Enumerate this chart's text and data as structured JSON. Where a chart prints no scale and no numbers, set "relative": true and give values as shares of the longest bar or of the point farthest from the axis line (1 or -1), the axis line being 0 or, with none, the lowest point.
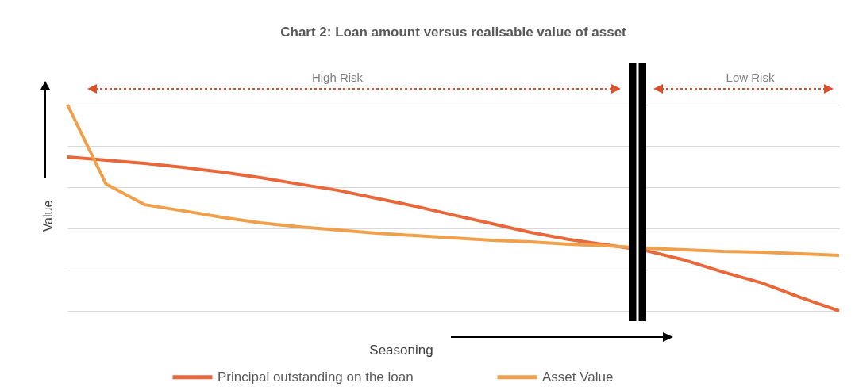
{
  "chart_data": {
    "type": "line",
    "title": "Chart 2: Loan amount versus realisable value of asset",
    "xlabel": "Seasoning",
    "ylabel": "Value",
    "relative": true,
    "categories": [
      null,
      null,
      null,
      null,
      null,
      null,
      null,
      null,
      null,
      null,
      null,
      null,
      null,
      null,
      null,
      null,
      null,
      null,
      null,
      null,
      null
    ],
    "series": [
      {
        "name": "Principal outstanding on the loan",
        "color": "#e8683a",
        "values": [
          0.746,
          0.731,
          0.715,
          0.696,
          0.673,
          0.646,
          0.615,
          0.585,
          0.546,
          0.508,
          0.465,
          0.423,
          0.381,
          0.346,
          0.319,
          0.292,
          0.246,
          0.188,
          0.135,
          0.065,
          0
        ]
      },
      {
        "name": "Asset Value",
        "color": "#f0a04b",
        "values": [
          1,
          0.615,
          0.515,
          0.485,
          0.454,
          0.427,
          0.408,
          0.392,
          0.377,
          0.365,
          0.354,
          0.342,
          0.335,
          0.323,
          0.315,
          0.304,
          0.296,
          0.288,
          0.285,
          0.277,
          0.269
        ]
      }
    ],
    "annotations": [
      "High Risk",
      "Low Risk"
    ],
    "grid": "y",
    "legend": "bottom",
    "tick_labels": false
  }
}
